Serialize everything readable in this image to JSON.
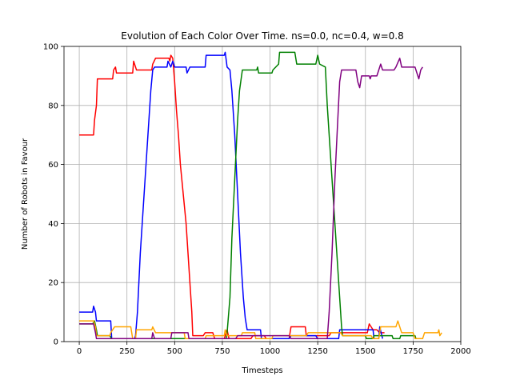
{
  "chart_data": {
    "type": "line",
    "title": "Evolution of Each Color Over Time. ns=0.0, nc=0.4, w=0.8",
    "xlabel": "Timesteps",
    "ylabel": "Number of Robots in Favour",
    "xlim": [
      -80,
      2000
    ],
    "ylim": [
      0,
      100
    ],
    "xticks": [
      0,
      250,
      500,
      750,
      1000,
      1250,
      1500,
      1750,
      2000
    ],
    "yticks": [
      0,
      20,
      40,
      60,
      80,
      100
    ],
    "grid": true,
    "legend": "none",
    "series": [
      {
        "color": "#ff0000",
        "points": [
          [
            0,
            70
          ],
          [
            75,
            70
          ],
          [
            80,
            75
          ],
          [
            90,
            80
          ],
          [
            95,
            89
          ],
          [
            175,
            89
          ],
          [
            180,
            92
          ],
          [
            190,
            93
          ],
          [
            195,
            91
          ],
          [
            280,
            91
          ],
          [
            285,
            95
          ],
          [
            300,
            92
          ],
          [
            330,
            92
          ],
          [
            380,
            92
          ],
          [
            385,
            94
          ],
          [
            400,
            96
          ],
          [
            470,
            96
          ],
          [
            475,
            95
          ],
          [
            480,
            97
          ],
          [
            490,
            96
          ],
          [
            500,
            88
          ],
          [
            510,
            78
          ],
          [
            520,
            70
          ],
          [
            530,
            60
          ],
          [
            545,
            50
          ],
          [
            560,
            40
          ],
          [
            570,
            30
          ],
          [
            580,
            20
          ],
          [
            590,
            10
          ],
          [
            595,
            2
          ],
          [
            600,
            2
          ],
          [
            650,
            2
          ],
          [
            660,
            3
          ],
          [
            700,
            3
          ],
          [
            710,
            1
          ],
          [
            720,
            1
          ],
          [
            760,
            1
          ],
          [
            775,
            4
          ],
          [
            785,
            1
          ],
          [
            900,
            1
          ],
          [
            910,
            2
          ],
          [
            970,
            2
          ],
          [
            980,
            1
          ],
          [
            1100,
            1
          ],
          [
            1110,
            5
          ],
          [
            1185,
            5
          ],
          [
            1190,
            2
          ],
          [
            1310,
            2
          ],
          [
            1320,
            3
          ],
          [
            1510,
            3
          ],
          [
            1520,
            6
          ],
          [
            1540,
            4
          ],
          [
            1560,
            4
          ],
          [
            1575,
            3
          ],
          [
            1600,
            3
          ]
        ]
      },
      {
        "color": "#0000ff",
        "points": [
          [
            0,
            10
          ],
          [
            70,
            10
          ],
          [
            75,
            12
          ],
          [
            85,
            10
          ],
          [
            90,
            7
          ],
          [
            165,
            7
          ],
          [
            170,
            1
          ],
          [
            290,
            1
          ],
          [
            295,
            2
          ],
          [
            305,
            10
          ],
          [
            320,
            30
          ],
          [
            340,
            50
          ],
          [
            360,
            70
          ],
          [
            375,
            85
          ],
          [
            385,
            92
          ],
          [
            395,
            93
          ],
          [
            460,
            93
          ],
          [
            465,
            95
          ],
          [
            480,
            93
          ],
          [
            490,
            95
          ],
          [
            500,
            93
          ],
          [
            560,
            93
          ],
          [
            565,
            91
          ],
          [
            580,
            93
          ],
          [
            660,
            93
          ],
          [
            665,
            97
          ],
          [
            760,
            97
          ],
          [
            765,
            98
          ],
          [
            775,
            93
          ],
          [
            790,
            92
          ],
          [
            800,
            85
          ],
          [
            815,
            70
          ],
          [
            830,
            50
          ],
          [
            845,
            30
          ],
          [
            860,
            15
          ],
          [
            870,
            8
          ],
          [
            880,
            4
          ],
          [
            950,
            4
          ],
          [
            955,
            1
          ],
          [
            1100,
            1
          ],
          [
            1110,
            2
          ],
          [
            1240,
            2
          ],
          [
            1250,
            1
          ],
          [
            1360,
            1
          ],
          [
            1365,
            4
          ],
          [
            1540,
            4
          ],
          [
            1545,
            1
          ],
          [
            1570,
            1
          ],
          [
            1575,
            5
          ],
          [
            1590,
            1
          ]
        ]
      },
      {
        "color": "#008000",
        "points": [
          [
            0,
            6
          ],
          [
            70,
            6
          ],
          [
            80,
            7
          ],
          [
            90,
            4
          ],
          [
            95,
            2
          ],
          [
            160,
            2
          ],
          [
            170,
            1
          ],
          [
            770,
            1
          ],
          [
            775,
            3
          ],
          [
            790,
            15
          ],
          [
            800,
            35
          ],
          [
            815,
            55
          ],
          [
            830,
            75
          ],
          [
            840,
            85
          ],
          [
            855,
            92
          ],
          [
            930,
            92
          ],
          [
            935,
            93
          ],
          [
            940,
            91
          ],
          [
            1010,
            91
          ],
          [
            1015,
            92
          ],
          [
            1045,
            94
          ],
          [
            1050,
            98
          ],
          [
            1130,
            98
          ],
          [
            1140,
            94
          ],
          [
            1240,
            94
          ],
          [
            1250,
            97
          ],
          [
            1260,
            94
          ],
          [
            1290,
            93
          ],
          [
            1300,
            80
          ],
          [
            1315,
            65
          ],
          [
            1330,
            50
          ],
          [
            1345,
            35
          ],
          [
            1360,
            20
          ],
          [
            1375,
            5
          ],
          [
            1380,
            2
          ],
          [
            1500,
            2
          ],
          [
            1505,
            1
          ],
          [
            1540,
            1
          ],
          [
            1545,
            2
          ],
          [
            1640,
            2
          ],
          [
            1645,
            1
          ],
          [
            1680,
            1
          ],
          [
            1685,
            2
          ],
          [
            1760,
            2
          ],
          [
            1765,
            1
          ]
        ]
      },
      {
        "color": "#ffa500",
        "points": [
          [
            0,
            7
          ],
          [
            75,
            7
          ],
          [
            85,
            5
          ],
          [
            90,
            2
          ],
          [
            160,
            2
          ],
          [
            165,
            3
          ],
          [
            185,
            5
          ],
          [
            270,
            5
          ],
          [
            280,
            1
          ],
          [
            295,
            1
          ],
          [
            300,
            4
          ],
          [
            380,
            4
          ],
          [
            385,
            5
          ],
          [
            400,
            3
          ],
          [
            550,
            3
          ],
          [
            555,
            1
          ],
          [
            660,
            1
          ],
          [
            665,
            2
          ],
          [
            760,
            2
          ],
          [
            765,
            4
          ],
          [
            775,
            2
          ],
          [
            850,
            2
          ],
          [
            855,
            3
          ],
          [
            920,
            3
          ],
          [
            925,
            1
          ],
          [
            1010,
            1
          ],
          [
            1015,
            2
          ],
          [
            1190,
            2
          ],
          [
            1200,
            3
          ],
          [
            1370,
            3
          ],
          [
            1380,
            2
          ],
          [
            1530,
            2
          ],
          [
            1540,
            1
          ],
          [
            1570,
            1
          ],
          [
            1580,
            5
          ],
          [
            1660,
            5
          ],
          [
            1670,
            7
          ],
          [
            1690,
            3
          ],
          [
            1750,
            3
          ],
          [
            1760,
            1
          ],
          [
            1800,
            1
          ],
          [
            1810,
            3
          ],
          [
            1880,
            3
          ],
          [
            1885,
            4
          ],
          [
            1890,
            2
          ],
          [
            1900,
            3
          ]
        ]
      },
      {
        "color": "#800080",
        "points": [
          [
            0,
            6
          ],
          [
            75,
            6
          ],
          [
            85,
            3
          ],
          [
            90,
            1
          ],
          [
            380,
            1
          ],
          [
            385,
            3
          ],
          [
            395,
            1
          ],
          [
            480,
            1
          ],
          [
            485,
            3
          ],
          [
            570,
            3
          ],
          [
            575,
            1
          ],
          [
            820,
            1
          ],
          [
            830,
            2
          ],
          [
            1100,
            2
          ],
          [
            1110,
            1
          ],
          [
            1300,
            1
          ],
          [
            1310,
            10
          ],
          [
            1325,
            30
          ],
          [
            1340,
            55
          ],
          [
            1355,
            75
          ],
          [
            1365,
            88
          ],
          [
            1375,
            92
          ],
          [
            1450,
            92
          ],
          [
            1460,
            88
          ],
          [
            1470,
            86
          ],
          [
            1480,
            90
          ],
          [
            1520,
            90
          ],
          [
            1525,
            89
          ],
          [
            1530,
            90
          ],
          [
            1560,
            90
          ],
          [
            1570,
            92
          ],
          [
            1580,
            94
          ],
          [
            1590,
            92
          ],
          [
            1650,
            92
          ],
          [
            1660,
            93
          ],
          [
            1680,
            96
          ],
          [
            1690,
            93
          ],
          [
            1760,
            93
          ],
          [
            1770,
            91
          ],
          [
            1780,
            89
          ],
          [
            1790,
            92
          ],
          [
            1800,
            93
          ]
        ]
      }
    ]
  }
}
